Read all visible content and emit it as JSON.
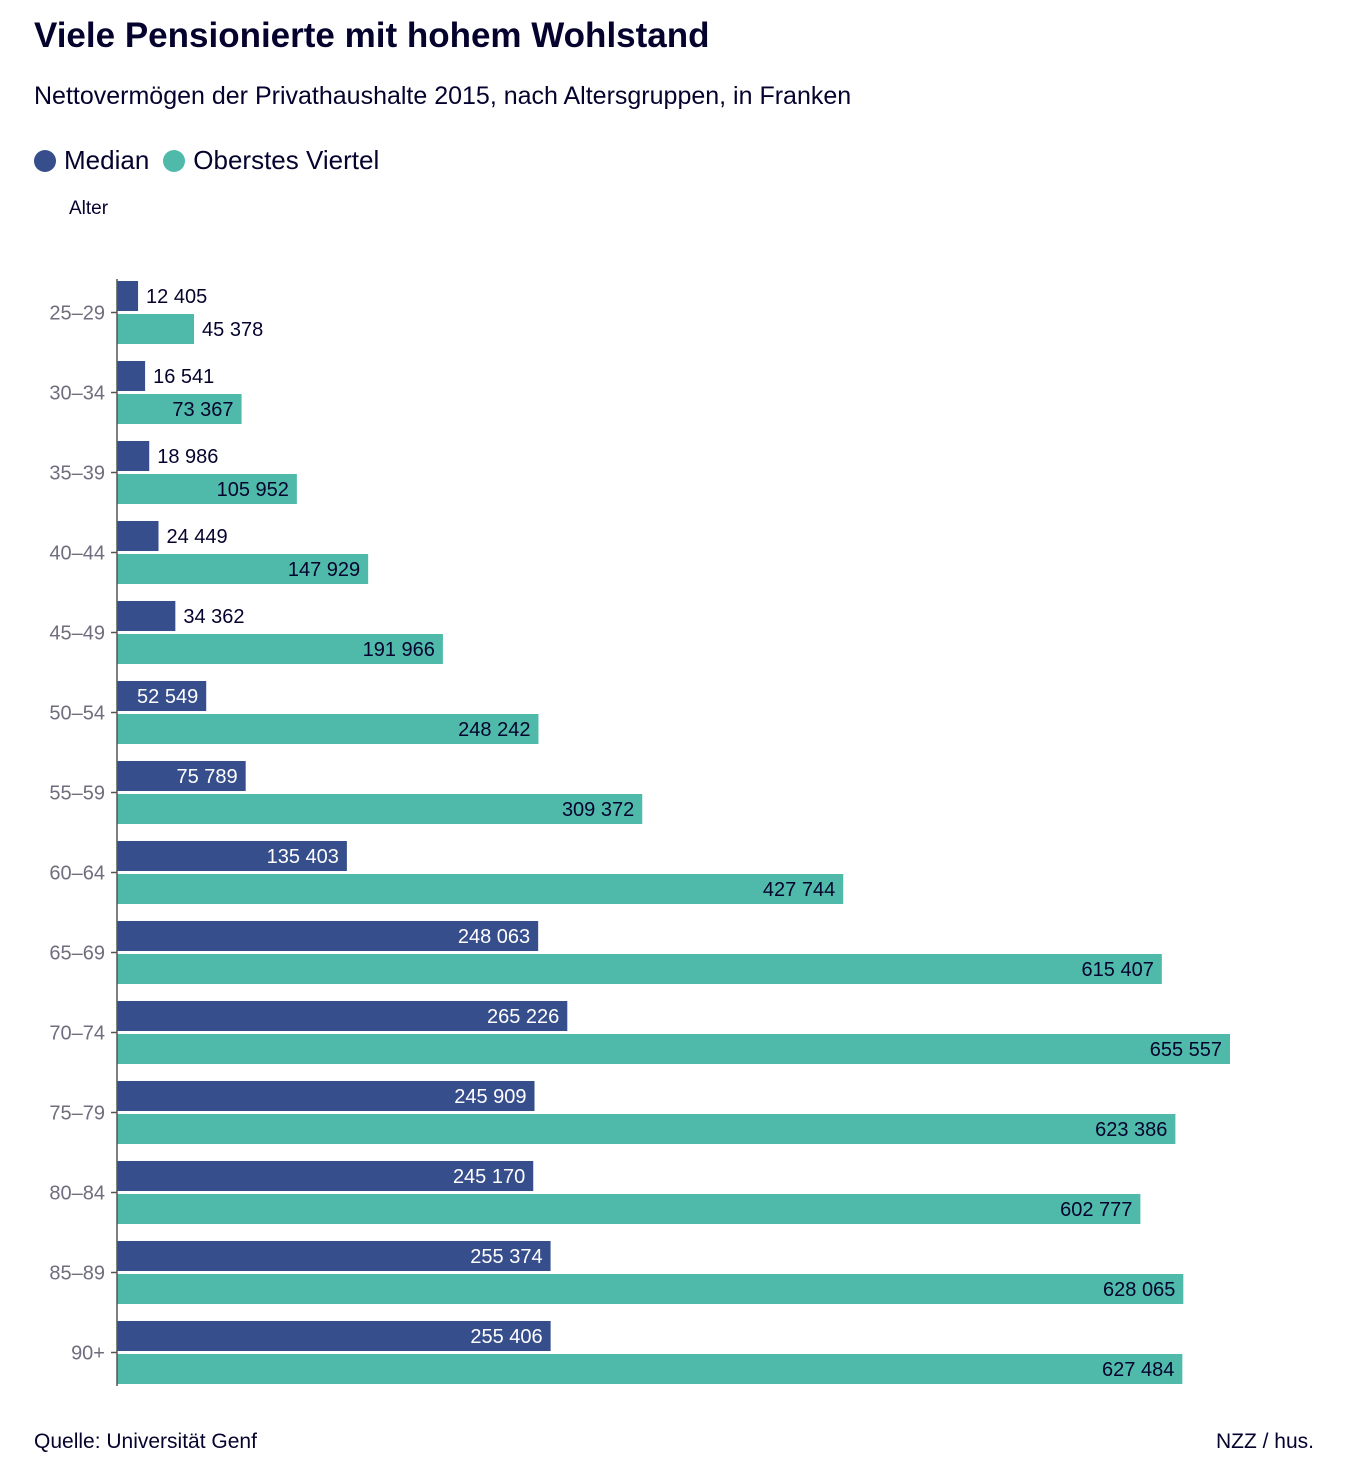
{
  "title": "Viele Pensionierte mit hohem Wohlstand",
  "subtitle": "Nettovermögen der Privathaushalte 2015, nach Altersgruppen, in Franken",
  "source": "Quelle: Universität Genf",
  "credit": "NZZ / hus.",
  "colors": {
    "median": "#374e8c",
    "top": "#4fbaaa",
    "axis": "#555555",
    "tick_text": "#6e6e7e",
    "label_dark": "#05032d",
    "label_light": "#ffffff"
  },
  "chart_data": {
    "type": "bar",
    "orientation": "horizontal",
    "title": "Viele Pensionierte mit hohem Wohlstand",
    "subtitle": "Nettovermögen der Privathaushalte 2015, nach Altersgruppen, in Franken",
    "ylabel": "Alter",
    "xlabel": "",
    "xlim": [
      0,
      700000
    ],
    "grid": false,
    "legend_position": "top-left",
    "categories": [
      "25–29",
      "30–34",
      "35–39",
      "40–44",
      "45–49",
      "50–54",
      "55–59",
      "60–64",
      "65–69",
      "70–74",
      "75–79",
      "80–84",
      "85–89",
      "90+"
    ],
    "series": [
      {
        "name": "Median",
        "values": [
          12405,
          16541,
          18986,
          24449,
          34362,
          52549,
          75789,
          135403,
          248063,
          265226,
          245909,
          245170,
          255374,
          255406
        ],
        "labels": [
          "12 405",
          "16 541",
          "18 986",
          "24 449",
          "34 362",
          "52 549",
          "75 789",
          "135 403",
          "248 063",
          "265 226",
          "245 909",
          "245 170",
          "255 374",
          "255 406"
        ]
      },
      {
        "name": "Oberstes Viertel",
        "values": [
          45378,
          73367,
          105952,
          147929,
          191966,
          248242,
          309372,
          427744,
          615407,
          655557,
          623386,
          602777,
          628065,
          627484
        ],
        "labels": [
          "45 378",
          "73 367",
          "105 952",
          "147 929",
          "191 966",
          "248 242",
          "309 372",
          "427 744",
          "615 407",
          "655 557",
          "623 386",
          "602 777",
          "628 065",
          "627 484"
        ]
      }
    ]
  }
}
